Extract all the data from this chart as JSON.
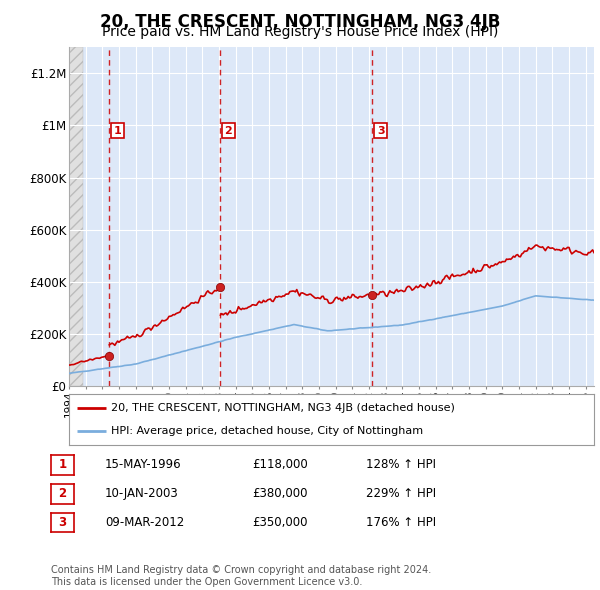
{
  "title": "20, THE CRESCENT, NOTTINGHAM, NG3 4JB",
  "subtitle": "Price paid vs. HM Land Registry's House Price Index (HPI)",
  "title_fontsize": 12,
  "subtitle_fontsize": 10,
  "background_color": "#ffffff",
  "plot_bg_color": "#dde8f8",
  "grid_color": "#ffffff",
  "sale_dates": [
    1996.37,
    2003.03,
    2012.18
  ],
  "sale_prices": [
    118000,
    380000,
    350000
  ],
  "sale_labels": [
    "1",
    "2",
    "3"
  ],
  "vline_color": "#cc0000",
  "sale_marker_color": "#cc0000",
  "xmin": 1994.0,
  "xmax": 2025.5,
  "ymin": 0,
  "ymax": 1300000,
  "yticks": [
    0,
    200000,
    400000,
    600000,
    800000,
    1000000,
    1200000
  ],
  "ytick_labels": [
    "£0",
    "£200K",
    "£400K",
    "£600K",
    "£800K",
    "£1M",
    "£1.2M"
  ],
  "legend_label_red": "20, THE CRESCENT, NOTTINGHAM, NG3 4JB (detached house)",
  "legend_label_blue": "HPI: Average price, detached house, City of Nottingham",
  "table_rows": [
    {
      "num": "1",
      "date": "15-MAY-1996",
      "price": "£118,000",
      "hpi": "128% ↑ HPI"
    },
    {
      "num": "2",
      "date": "10-JAN-2003",
      "price": "£380,000",
      "hpi": "229% ↑ HPI"
    },
    {
      "num": "3",
      "date": "09-MAR-2012",
      "price": "£350,000",
      "hpi": "176% ↑ HPI"
    }
  ],
  "footnote": "Contains HM Land Registry data © Crown copyright and database right 2024.\nThis data is licensed under the Open Government Licence v3.0.",
  "red_line_color": "#cc0000",
  "blue_line_color": "#7aaddd"
}
